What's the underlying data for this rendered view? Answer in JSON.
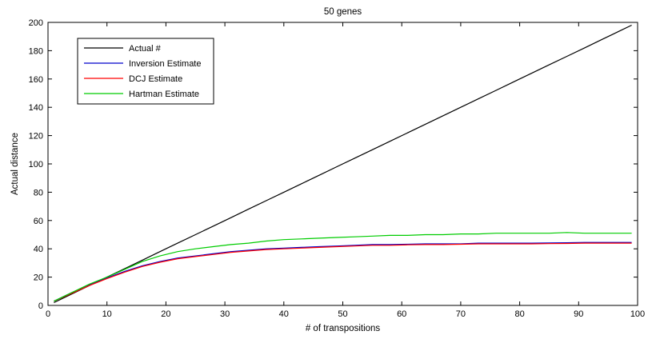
{
  "chart_data": {
    "type": "line",
    "title": "50 genes",
    "xlabel": "# of transpositions",
    "ylabel": "Actual distance",
    "xlim": [
      0,
      100
    ],
    "ylim": [
      0,
      200
    ],
    "xticks": [
      0,
      10,
      20,
      30,
      40,
      50,
      60,
      70,
      80,
      90,
      100
    ],
    "yticks": [
      0,
      20,
      40,
      60,
      80,
      100,
      120,
      140,
      160,
      180,
      200
    ],
    "grid": false,
    "legend_position": "top-left",
    "x": [
      1,
      4,
      7,
      10,
      13,
      16,
      19,
      22,
      25,
      28,
      31,
      34,
      37,
      40,
      43,
      46,
      49,
      52,
      55,
      58,
      61,
      64,
      67,
      70,
      73,
      76,
      79,
      82,
      85,
      88,
      91,
      94,
      97,
      99
    ],
    "series": [
      {
        "name": "Actual #",
        "color": "#000000",
        "values": [
          2,
          8,
          14,
          20,
          26,
          32,
          38,
          44,
          50,
          56,
          62,
          68,
          74,
          80,
          86,
          92,
          98,
          104,
          110,
          116,
          122,
          128,
          134,
          140,
          146,
          152,
          158,
          164,
          170,
          176,
          182,
          188,
          194,
          198
        ]
      },
      {
        "name": "Inversion Estimate",
        "color": "#0000cc",
        "values": [
          3,
          9,
          14.5,
          19.5,
          24,
          28,
          31,
          33.5,
          35,
          36.5,
          38,
          39,
          40,
          40.5,
          41,
          41.5,
          42,
          42.5,
          43,
          43,
          43.2,
          43.5,
          43.5,
          43.5,
          44,
          44,
          44,
          44,
          44.2,
          44.3,
          44.5,
          44.5,
          44.5,
          44.5
        ]
      },
      {
        "name": "DCJ Estimate",
        "color": "#ff0000",
        "values": [
          3,
          8.5,
          14,
          19,
          23.5,
          27.5,
          30.5,
          33,
          34.5,
          36,
          37.5,
          38.5,
          39.5,
          40,
          40.5,
          41,
          41.5,
          42,
          42.5,
          42.5,
          42.8,
          43,
          43,
          43.2,
          43.5,
          43.5,
          43.5,
          43.5,
          43.7,
          43.8,
          44,
          44,
          44,
          44
        ]
      },
      {
        "name": "Hartman Estimate",
        "color": "#00cc00",
        "values": [
          3,
          9,
          15,
          20,
          25.5,
          31,
          35,
          38,
          40,
          41.5,
          43,
          44,
          45.5,
          46.5,
          47,
          47.5,
          48,
          48.5,
          49,
          49.5,
          49.5,
          50,
          50,
          50.5,
          50.5,
          51,
          51,
          51,
          51,
          51.5,
          51,
          51,
          51,
          51
        ]
      }
    ]
  }
}
